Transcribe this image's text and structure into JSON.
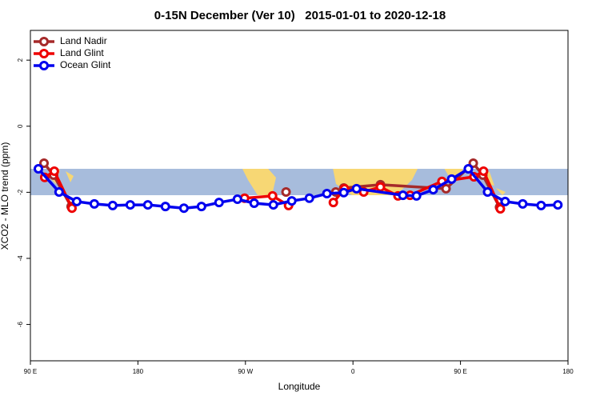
{
  "chart_data": {
    "type": "line",
    "title": "0-15N December (Ver 10)   2015-01-01 to 2020-12-18",
    "x_label": "Longitude",
    "y_label": "XCO2 - MLO trend (ppm)",
    "xlim": [
      90,
      540
    ],
    "xticks": [
      {
        "value": 90,
        "label": "90 E"
      },
      {
        "value": 180,
        "label": "180"
      },
      {
        "value": 270,
        "label": "90 W"
      },
      {
        "value": 360,
        "label": "0"
      },
      {
        "value": 450,
        "label": "90 E"
      },
      {
        "value": 540,
        "label": "180"
      }
    ],
    "ylim": [
      -7.1,
      2.9
    ],
    "yticks": [
      2,
      0,
      -2,
      -4,
      -6
    ],
    "legend": "top-left",
    "series": [
      {
        "name": "Land Nadir",
        "color": "#a52a2a",
        "x": [
          101.4,
          109.4,
          124.1,
          null,
          304,
          null,
          345.6,
          352.3,
          383,
          437.9,
          460.7,
          468.7,
          482.7
        ],
        "values": [
          -1.12,
          -1.48,
          -2.43,
          null,
          -1.99,
          null,
          -1.99,
          -1.87,
          -1.77,
          -1.89,
          -1.12,
          -1.48,
          -2.45
        ]
      },
      {
        "name": "Land Glint",
        "color": "#ee0000",
        "x": [
          102,
          110,
          124.8,
          null,
          269.3,
          292.7,
          306.1,
          null,
          343.6,
          352.9,
          369,
          383,
          397.7,
          407.8,
          434.5,
          461.3,
          469.3,
          483.4
        ],
        "values": [
          -1.55,
          -1.36,
          -2.48,
          null,
          -2.18,
          -2.11,
          -2.4,
          null,
          -2.31,
          -1.89,
          -1.99,
          -1.84,
          -2.11,
          -2.09,
          -1.67,
          -1.53,
          -1.36,
          -2.5
        ]
      },
      {
        "name": "Ocean Glint",
        "color": "#0000ee",
        "x": [
          96.7,
          114,
          128.8,
          143.5,
          158.9,
          173.6,
          188.3,
          203,
          218.5,
          233.2,
          247.9,
          263.3,
          277.3,
          293.4,
          308.8,
          323.5,
          338.2,
          352.3,
          363,
          401.8,
          413.2,
          427.2,
          442.6,
          456.6,
          472.7,
          487.4,
          502.1,
          517.5,
          531.5
        ],
        "values": [
          -1.29,
          -1.99,
          -2.28,
          -2.35,
          -2.4,
          -2.38,
          -2.38,
          -2.43,
          -2.48,
          -2.43,
          -2.31,
          -2.21,
          -2.33,
          -2.38,
          -2.26,
          -2.18,
          -2.04,
          -2.01,
          -1.89,
          -2.09,
          -2.11,
          -1.92,
          -1.6,
          -1.29,
          -1.99,
          -2.28,
          -2.35,
          -2.4,
          -2.38
        ]
      }
    ]
  }
}
